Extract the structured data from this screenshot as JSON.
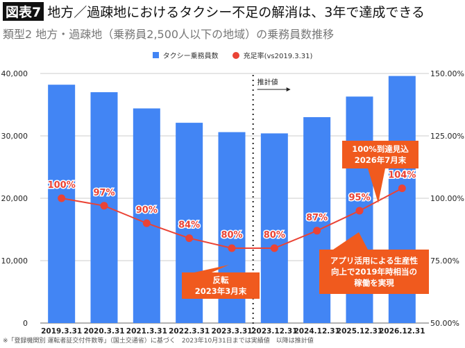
{
  "header": {
    "badge": "図表7",
    "title": "地方／過疎地におけるタクシー不足の解消は、3年で達成できる",
    "subtitle": "類型2 地方・過疎地（乗務員2,500人以下の地域）の乗務員数推移"
  },
  "chart_data": {
    "type": "bar",
    "categories": [
      "2019.3.31",
      "2020.3.31",
      "2021.3.31",
      "2022.3.31",
      "2023.3.31",
      "2023.12.31",
      "2024.12.31",
      "2025.12.31",
      "2026.12.31"
    ],
    "series": [
      {
        "name": "タクシー乗務員数",
        "type": "bar",
        "axis": "left",
        "color": "#4285f4",
        "values": [
          38200,
          37000,
          34400,
          32100,
          30600,
          30400,
          33000,
          36300,
          39600
        ]
      },
      {
        "name": "充足率(vs2019.3.31)",
        "type": "line",
        "axis": "right",
        "color": "#ea4335",
        "values": [
          100,
          97,
          90,
          84,
          80,
          80,
          87,
          95,
          104
        ],
        "labels": [
          "100%",
          "97%",
          "90%",
          "84%",
          "80%",
          "80%",
          "87%",
          "95%",
          "104%"
        ]
      }
    ],
    "ylim": [
      0,
      40000
    ],
    "y2lim": [
      50,
      150
    ],
    "yticks": [
      "0",
      "10,000",
      "20,000",
      "30,000",
      "40,000"
    ],
    "y2ticks": [
      "50.00%",
      "75.00%",
      "100.00%",
      "125.00%",
      "150.00%"
    ],
    "grid": true,
    "legend": "top-center",
    "estimate_divider_label": "推計値",
    "annotations": [
      {
        "text": [
          "反転",
          "2023年3月末"
        ],
        "color": "#f05a1e"
      },
      {
        "text": [
          "100%到達見込",
          "2026年7月末"
        ],
        "color": "#f05a1e"
      },
      {
        "text": [
          "アプリ活用による生産性",
          "向上で2019年時相当の",
          "稼働を実現"
        ],
        "color": "#f05a1e"
      }
    ]
  },
  "footnote": "※「登録機関別 運転者証交付件数等」（国土交通省）に基づく　2023年10月31日までは実績値　以降は推計値"
}
